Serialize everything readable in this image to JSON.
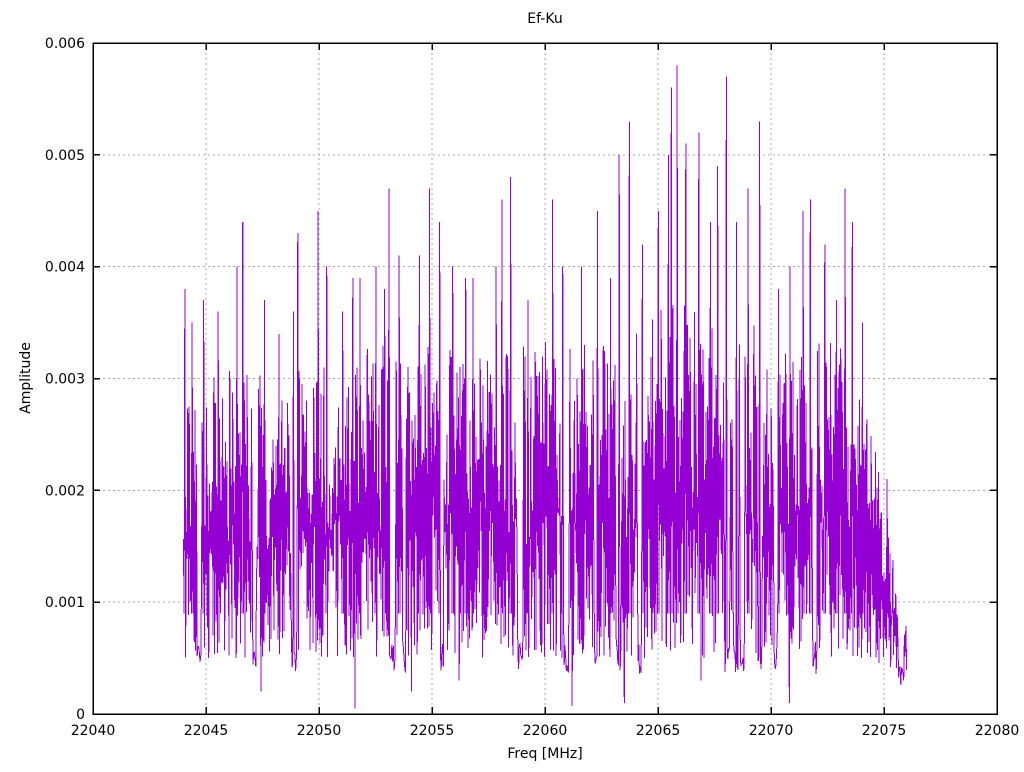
{
  "chart_data": {
    "type": "line",
    "title": "Ef-Ku",
    "xlabel": "Freq [MHz]",
    "ylabel": "Amplitude",
    "xlim": [
      22040,
      22080
    ],
    "ylim": [
      0,
      0.006
    ],
    "xticks": [
      {
        "v": 22040,
        "label": "22040"
      },
      {
        "v": 22045,
        "label": "22045"
      },
      {
        "v": 22050,
        "label": "22050"
      },
      {
        "v": 22055,
        "label": "22055"
      },
      {
        "v": 22060,
        "label": "22060"
      },
      {
        "v": 22065,
        "label": "22065"
      },
      {
        "v": 22070,
        "label": "22070"
      },
      {
        "v": 22075,
        "label": "22075"
      },
      {
        "v": 22080,
        "label": "22080"
      }
    ],
    "yticks": [
      {
        "v": 0,
        "label": "0"
      },
      {
        "v": 0.001,
        "label": "0.001"
      },
      {
        "v": 0.002,
        "label": "0.002"
      },
      {
        "v": 0.003,
        "label": "0.003"
      },
      {
        "v": 0.004,
        "label": "0.004"
      },
      {
        "v": 0.005,
        "label": "0.005"
      },
      {
        "v": 0.006,
        "label": "0.006"
      }
    ],
    "grid": true,
    "grid_color": "#a8a8a8",
    "line_color": "#9400d3",
    "border_color": "#000000",
    "legend": "none",
    "series": {
      "name": "Ef-Ku",
      "x_start": 22044.0,
      "x_end": 22076.0,
      "n_points": 1000,
      "seed": 42,
      "noise_top_envelope": [
        [
          22044,
          0.0029
        ],
        [
          22046,
          0.0031
        ],
        [
          22048,
          0.003
        ],
        [
          22050,
          0.0032
        ],
        [
          22052,
          0.0033
        ],
        [
          22054,
          0.0033
        ],
        [
          22056,
          0.0034
        ],
        [
          22058,
          0.0033
        ],
        [
          22060,
          0.0034
        ],
        [
          22062,
          0.0034
        ],
        [
          22064,
          0.0035
        ],
        [
          22066,
          0.0037
        ],
        [
          22068,
          0.0036
        ],
        [
          22070,
          0.0034
        ],
        [
          22072,
          0.0034
        ],
        [
          22073.5,
          0.0033
        ],
        [
          22074.5,
          0.0026
        ],
        [
          22075.2,
          0.0016
        ],
        [
          22076,
          0.0008
        ]
      ],
      "noise_bottom_envelope": [
        [
          22044,
          0.0005
        ],
        [
          22060,
          0.0005
        ],
        [
          22074,
          0.0005
        ],
        [
          22075,
          0.0004
        ],
        [
          22076,
          0.00035
        ]
      ],
      "peaks": [
        [
          22044.05,
          0.0038
        ],
        [
          22044.35,
          0.0035
        ],
        [
          22044.9,
          0.0037
        ],
        [
          22045.5,
          0.0036
        ],
        [
          22046.35,
          0.004
        ],
        [
          22046.6,
          0.0044
        ],
        [
          22047.6,
          0.0037
        ],
        [
          22048.2,
          0.0034
        ],
        [
          22048.85,
          0.0036
        ],
        [
          22049.05,
          0.0043
        ],
        [
          22049.95,
          0.0045
        ],
        [
          22050.3,
          0.004
        ],
        [
          22051.0,
          0.0036
        ],
        [
          22051.45,
          0.0039
        ],
        [
          22051.8,
          0.0039
        ],
        [
          22052.5,
          0.004
        ],
        [
          22052.9,
          0.0038
        ],
        [
          22053.1,
          0.0047
        ],
        [
          22053.5,
          0.0041
        ],
        [
          22054.45,
          0.0041
        ],
        [
          22054.85,
          0.0047
        ],
        [
          22055.3,
          0.0044
        ],
        [
          22055.9,
          0.004
        ],
        [
          22056.45,
          0.0039
        ],
        [
          22056.8,
          0.0039
        ],
        [
          22057.8,
          0.004
        ],
        [
          22058.05,
          0.0046
        ],
        [
          22058.45,
          0.0048
        ],
        [
          22059.2,
          0.0037
        ],
        [
          22060.3,
          0.0046
        ],
        [
          22060.8,
          0.004
        ],
        [
          22061.6,
          0.004
        ],
        [
          22062.3,
          0.0045
        ],
        [
          22062.9,
          0.0039
        ],
        [
          22063.25,
          0.005
        ],
        [
          22063.7,
          0.0053
        ],
        [
          22064.3,
          0.0042
        ],
        [
          22065.0,
          0.0045
        ],
        [
          22065.45,
          0.005
        ],
        [
          22065.6,
          0.0056
        ],
        [
          22065.85,
          0.0058
        ],
        [
          22066.2,
          0.0051
        ],
        [
          22066.8,
          0.0052
        ],
        [
          22067.3,
          0.0044
        ],
        [
          22067.6,
          0.0049
        ],
        [
          22068.0,
          0.0057
        ],
        [
          22068.45,
          0.0044
        ],
        [
          22068.95,
          0.0047
        ],
        [
          22069.5,
          0.0053
        ],
        [
          22070.3,
          0.0038
        ],
        [
          22070.85,
          0.004
        ],
        [
          22071.4,
          0.0045
        ],
        [
          22071.7,
          0.0046
        ],
        [
          22072.35,
          0.0042
        ],
        [
          22072.9,
          0.0037
        ],
        [
          22073.25,
          0.0047
        ],
        [
          22073.55,
          0.0044
        ],
        [
          22074.05,
          0.0035
        ],
        [
          22075.1,
          0.0021
        ]
      ],
      "dips": [
        [
          22047.4,
          0.0002
        ],
        [
          22051.6,
          5e-05
        ],
        [
          22054.1,
          0.0002
        ],
        [
          22056.2,
          0.0003
        ],
        [
          22061.2,
          7e-05
        ],
        [
          22063.5,
          0.0001
        ],
        [
          22066.9,
          0.0003
        ],
        [
          22070.8,
          0.0001
        ],
        [
          22075.85,
          0.0003
        ]
      ]
    }
  }
}
